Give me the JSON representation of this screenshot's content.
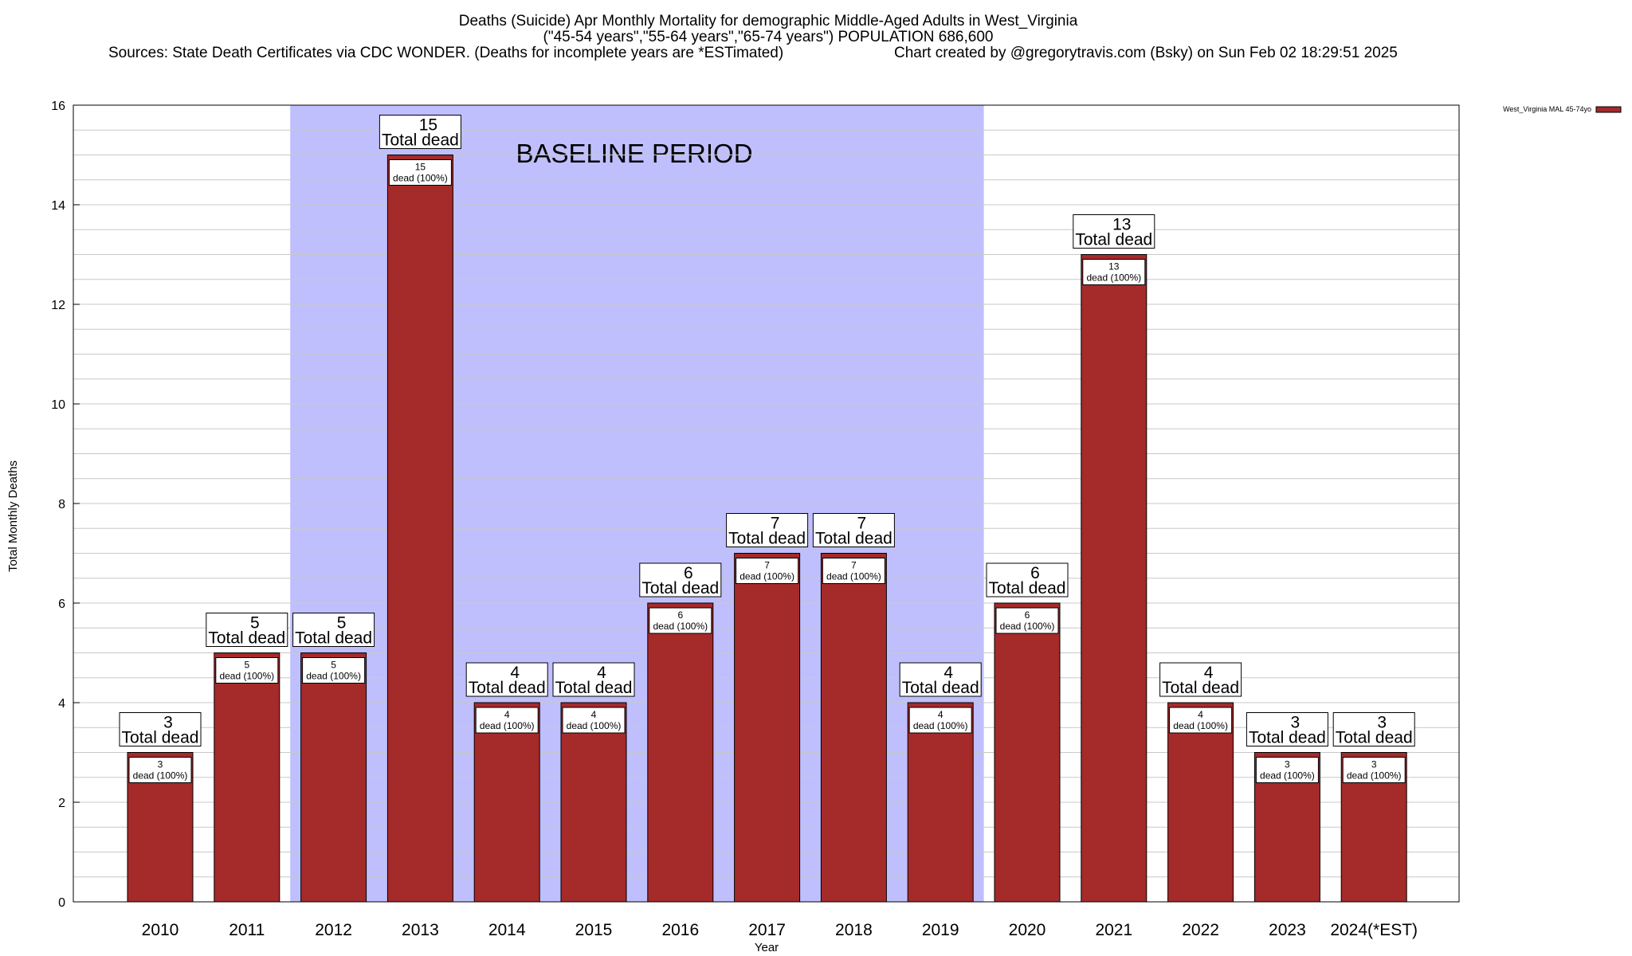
{
  "chart_data": {
    "type": "bar",
    "title": "Deaths (Suicide) Apr Monthly Mortality for demographic Middle-Aged Adults in West_Virginia",
    "subtitle": "(\"45-54 years\",\"55-64 years\",\"65-74 years\") POPULATION 686,600",
    "sources": "Sources: State Death Certificates via CDC WONDER. (Deaths for incomplete years are *ESTimated)",
    "credit": "Chart created by @gregorytravis.com (Bsky) on Sun Feb 02 18:29:51 2025",
    "xlabel": "Year",
    "ylabel": "Total Monthly Deaths",
    "ylim": [
      0,
      16
    ],
    "yticks": [
      0,
      2,
      4,
      6,
      8,
      10,
      12,
      14,
      16
    ],
    "grid": true,
    "legend_position": "top-right",
    "categories": [
      "2010",
      "2011",
      "2012",
      "2013",
      "2014",
      "2015",
      "2016",
      "2017",
      "2018",
      "2019",
      "2020",
      "2021",
      "2022",
      "2023",
      "2024(*EST)"
    ],
    "series": [
      {
        "name": "West_Virginia MAL 45-74yo",
        "color": "#a52a2a",
        "values": [
          3,
          5,
          5,
          15,
          4,
          4,
          6,
          7,
          7,
          4,
          6,
          13,
          4,
          3,
          3
        ]
      }
    ],
    "total_label": "Total dead",
    "segment_label_suffix": "dead (100%)",
    "baseline_region": {
      "label": "BASELINE PERIOD",
      "start_category": "2012",
      "end_category": "2019",
      "color": "#bfbffd"
    }
  }
}
